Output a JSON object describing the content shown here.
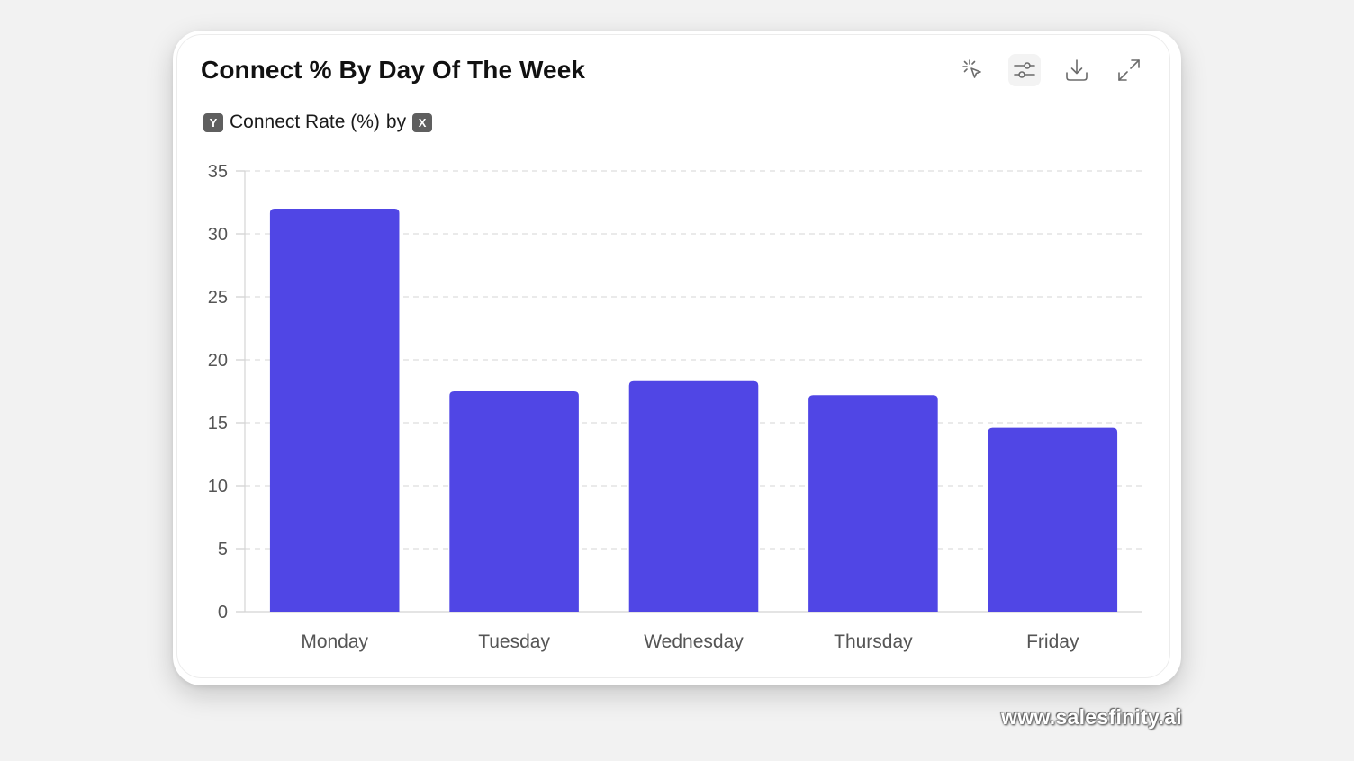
{
  "card": {
    "title": "Connect % By Day Of The Week",
    "toolbar": [
      {
        "name": "click-select-icon"
      },
      {
        "name": "sliders-icon"
      },
      {
        "name": "download-icon"
      },
      {
        "name": "expand-icon"
      }
    ],
    "subtitle": {
      "y_chip": "Y",
      "text": "Connect Rate (%)",
      "by": "by",
      "x_chip": "X"
    }
  },
  "chart_data": {
    "type": "bar",
    "categories": [
      "Monday",
      "Tuesday",
      "Wednesday",
      "Thursday",
      "Friday"
    ],
    "values": [
      32,
      17.5,
      18.3,
      17.2,
      14.6
    ],
    "title": "Connect % By Day Of The Week",
    "xlabel": "",
    "ylabel": "",
    "ylim": [
      0,
      35
    ],
    "yticks": [
      0,
      5,
      10,
      15,
      20,
      25,
      30,
      35
    ],
    "grid": true,
    "bar_color": "#5046e5"
  },
  "watermark": "www.salesfinity.ai"
}
